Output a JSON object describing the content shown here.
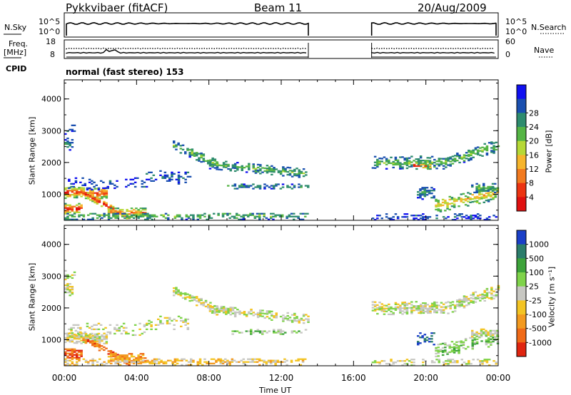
{
  "header": {
    "radar": "Pykkvibaer (fitACF)",
    "beam": "Beam 11",
    "date": "20/Aug/2009"
  },
  "strips": {
    "nsky_label": "N.Sky",
    "nsky_ticks": [
      "10^5",
      "10^0"
    ],
    "nsearch_label": "N.Search",
    "nsearch_ticks": [
      "10^5",
      "10^0"
    ],
    "freq_label_1": "Freq.",
    "freq_label_2": "[MHz]",
    "freq_ticks": [
      "18",
      "8"
    ],
    "nave_label": "Nave",
    "nave_ticks": [
      "60",
      "0"
    ],
    "cpid_label": "CPID",
    "cpid_text": "normal (fast stereo) 153"
  },
  "chart_data": [
    {
      "type": "heatmap",
      "name": "power",
      "ylabel": "Slant Range [km]",
      "xlabel": "",
      "yticks": [
        1000,
        2000,
        3000,
        4000
      ],
      "ylim": [
        180,
        4600
      ],
      "xlim_hours": [
        0,
        24
      ],
      "data_gap_hours": [
        13.5,
        17.0
      ],
      "colorbar": {
        "label": "Power [dB]",
        "ticks": [
          "4",
          "8",
          "12",
          "16",
          "20",
          "24",
          "28"
        ],
        "colors": [
          "#1010f0",
          "#1a50b0",
          "#2e8c6e",
          "#55b545",
          "#b6d836",
          "#f6b52c",
          "#f27a1f",
          "#ec3412",
          "#e01010"
        ]
      }
    },
    {
      "type": "heatmap",
      "name": "velocity",
      "ylabel": "Slant Range [km]",
      "xlabel": "Time UT",
      "xticks": [
        "00:00",
        "04:00",
        "08:00",
        "12:00",
        "16:00",
        "20:00",
        "00:00"
      ],
      "yticks": [
        1000,
        2000,
        3000,
        4000
      ],
      "ylim": [
        180,
        4600
      ],
      "xlim_hours": [
        0,
        24
      ],
      "data_gap_hours": [
        13.5,
        17.0
      ],
      "colorbar": {
        "label": "Velocity [m s⁻¹]",
        "ticks": [
          "1000",
          "500",
          "100",
          "25",
          "-25",
          "-100",
          "-500",
          "-1000"
        ],
        "colors": [
          "#1a3fc8",
          "#2b7d6b",
          "#3da33a",
          "#7fd34a",
          "#c7c7c2",
          "#f3c423",
          "#f39a1f",
          "#f06a17",
          "#e02510"
        ]
      }
    }
  ]
}
